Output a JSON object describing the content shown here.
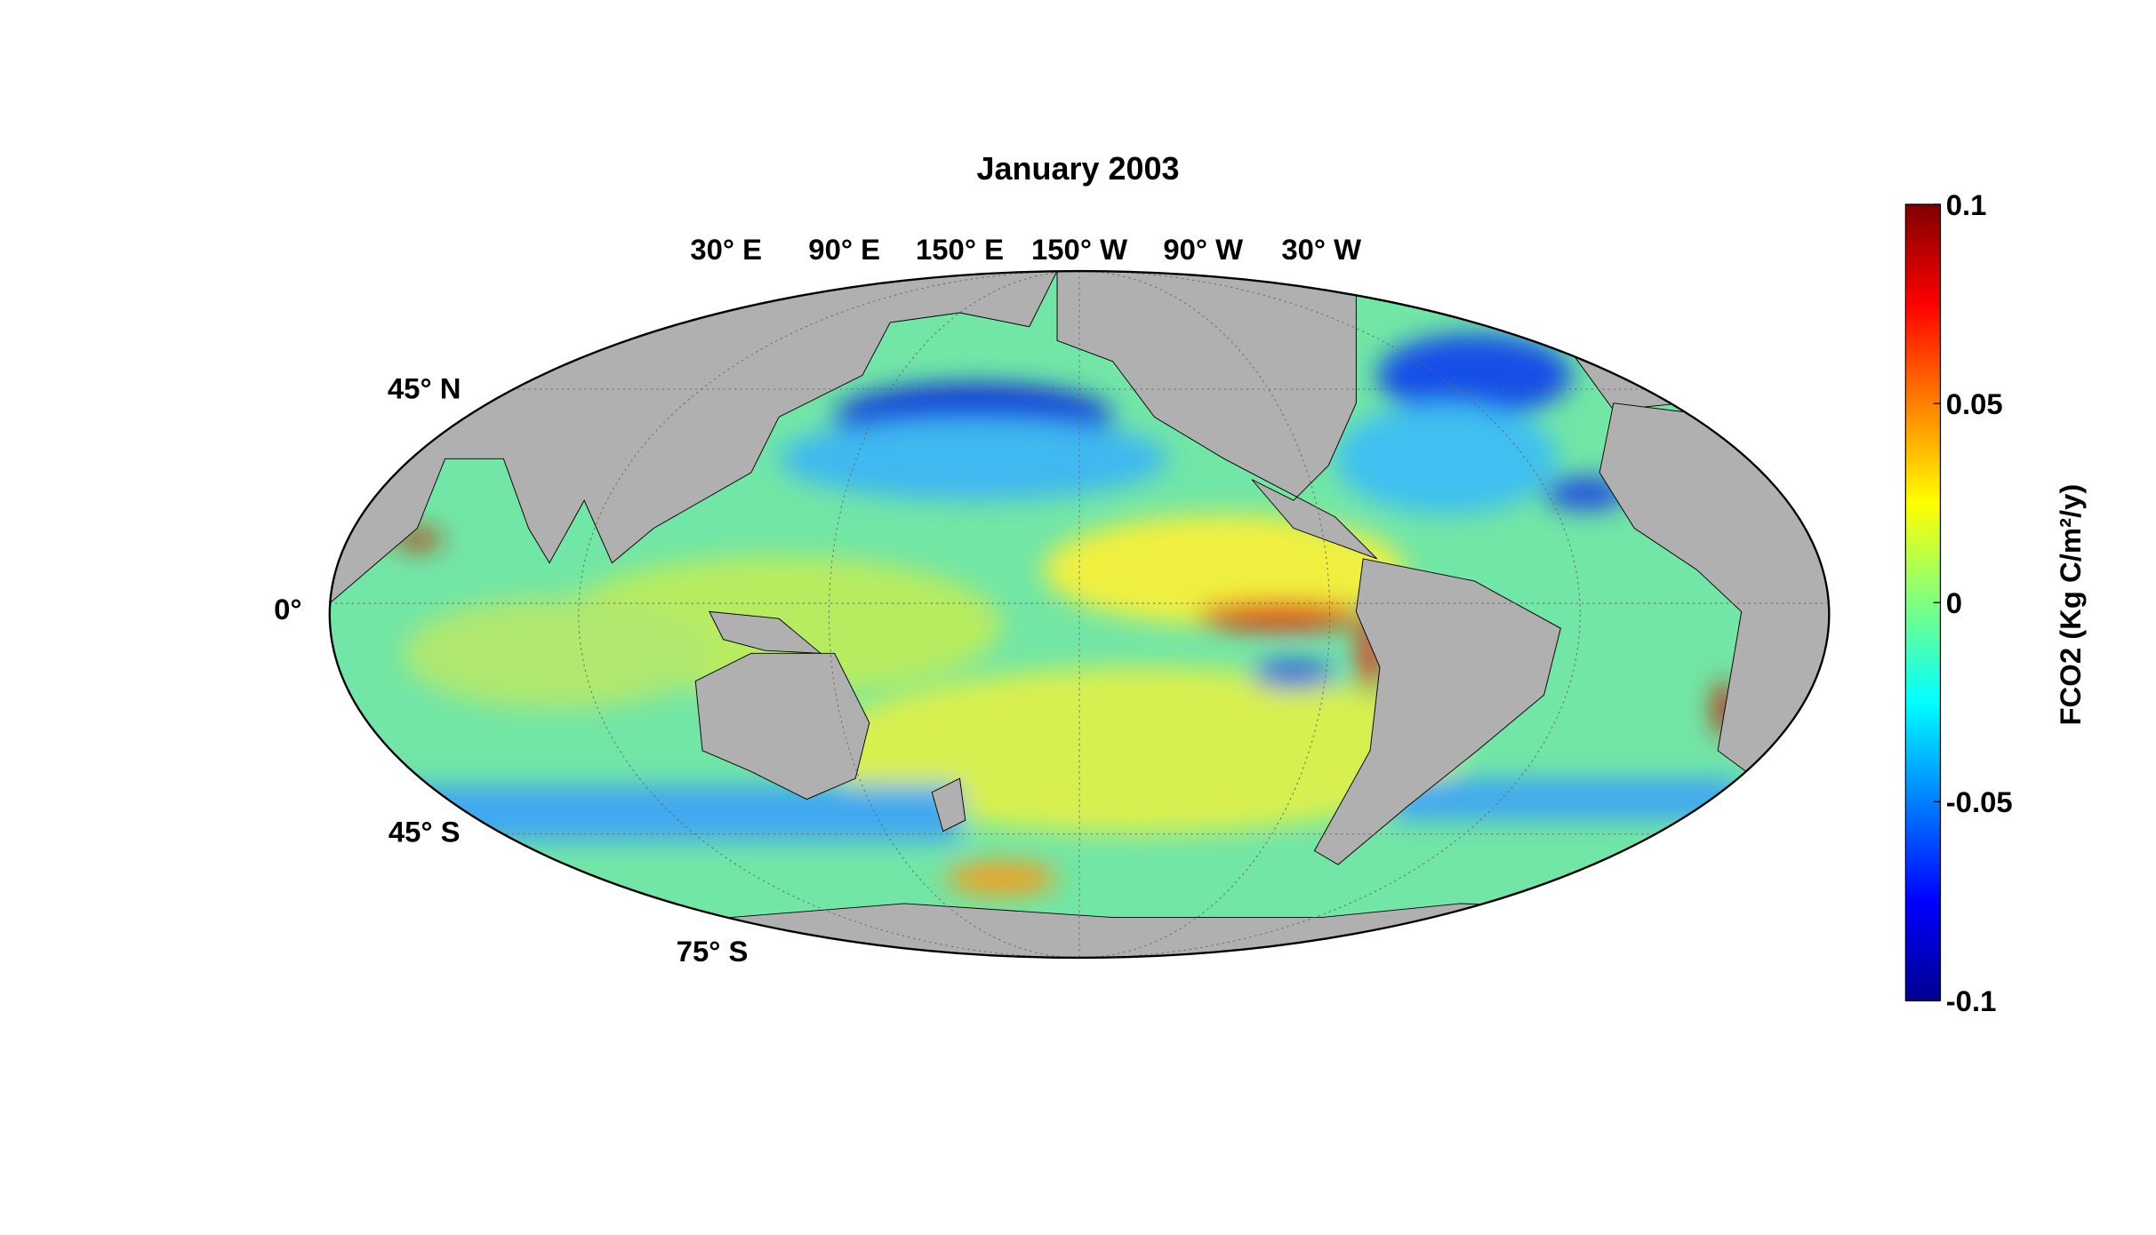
{
  "title": "January 2003",
  "map": {
    "projection": "Mollweide",
    "lon_labels": [
      "30° E",
      "90° E",
      "150° E",
      "150° W",
      "90° W",
      "30° W"
    ],
    "lat_labels": [
      "45° N",
      "0°",
      "45° S",
      "75° S"
    ]
  },
  "colorbar": {
    "label": "FCO2 (Kg C/m²/y)",
    "lim": [
      -0.1,
      0.1
    ],
    "ticks": [
      -0.1,
      -0.05,
      0,
      0.05,
      0.1
    ]
  }
}
